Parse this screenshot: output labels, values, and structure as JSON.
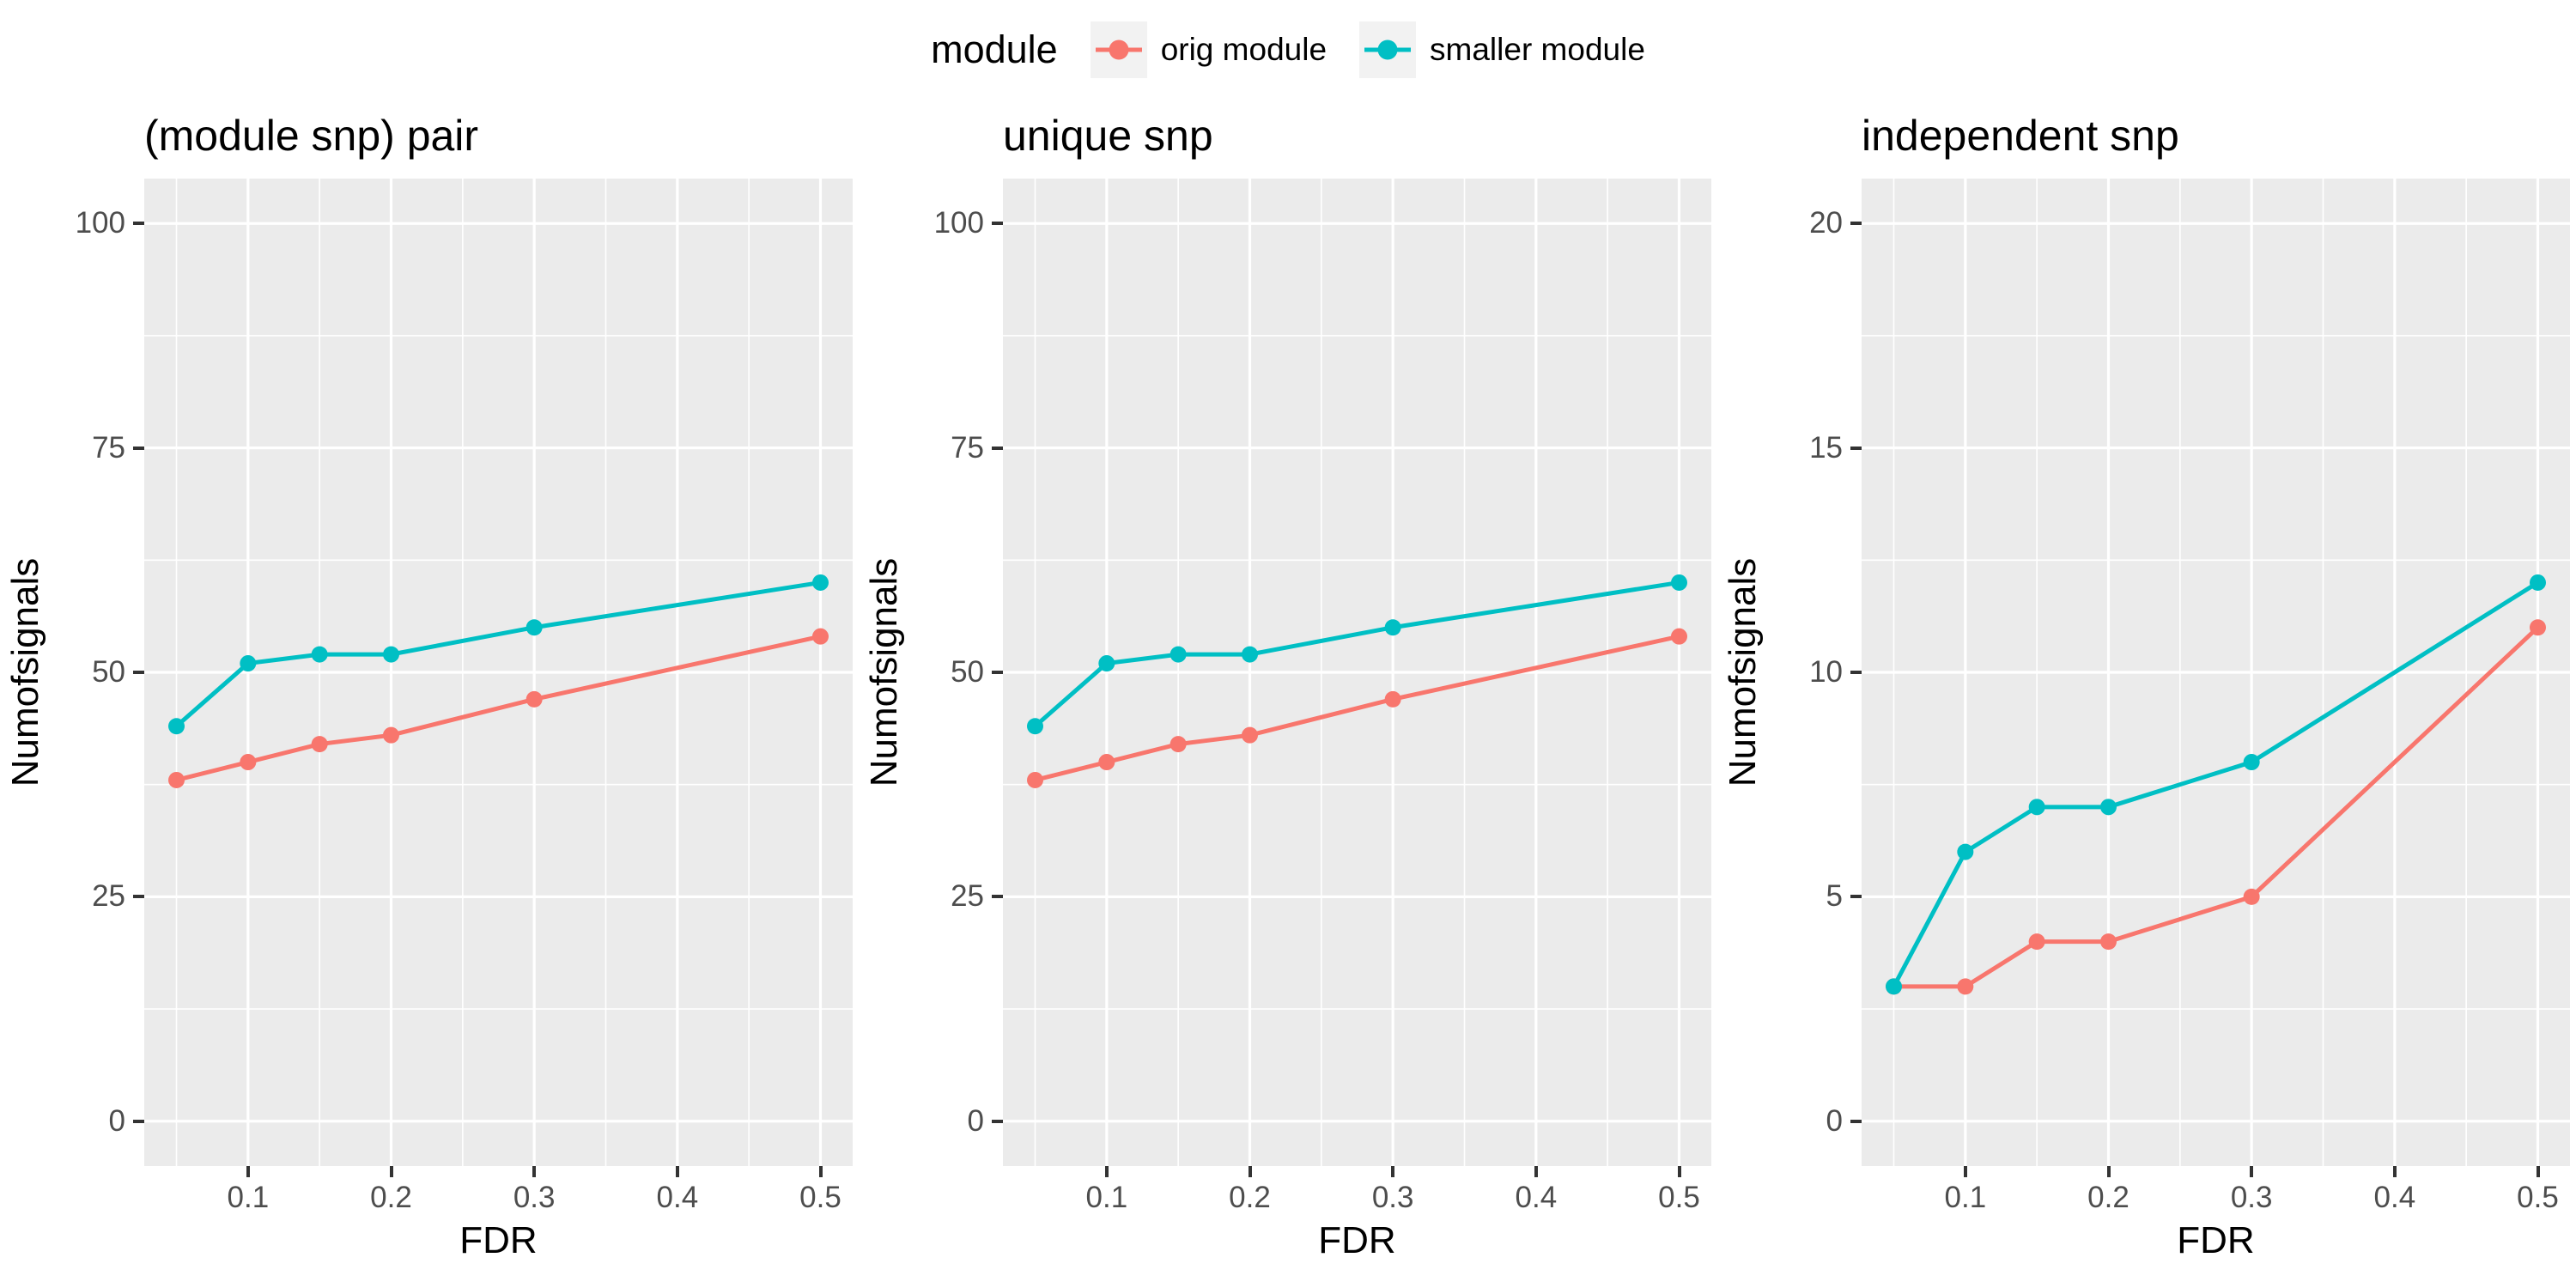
{
  "legend": {
    "title": "module",
    "items": [
      {
        "label": "orig module",
        "color": "#F8766D"
      },
      {
        "label": "smaller module",
        "color": "#00BFC4"
      }
    ]
  },
  "colors": {
    "panel_bg": "#EBEBEB",
    "grid": "#FFFFFF",
    "tick_label": "#4D4D4D",
    "axis_tick": "#333333",
    "legend_key_bg": "#F2F2F2",
    "orig_module": "#F8766D",
    "smaller_module": "#00BFC4"
  },
  "chart_data": [
    {
      "type": "line",
      "title": "(module snp) pair",
      "xlabel": "FDR",
      "ylabel": "Numofsignals",
      "x": [
        0.05,
        0.1,
        0.15,
        0.2,
        0.3,
        0.5
      ],
      "xticks": [
        0.1,
        0.2,
        0.3,
        0.4,
        0.5
      ],
      "ylim": [
        0,
        100
      ],
      "yticks": [
        0,
        25,
        50,
        75,
        100
      ],
      "grid": true,
      "legend_position": "top",
      "series": [
        {
          "name": "orig module",
          "color": "#F8766D",
          "values": [
            38,
            40,
            42,
            43,
            47,
            54
          ]
        },
        {
          "name": "smaller module",
          "color": "#00BFC4",
          "values": [
            44,
            51,
            52,
            52,
            55,
            60
          ]
        }
      ]
    },
    {
      "type": "line",
      "title": "unique snp",
      "xlabel": "FDR",
      "ylabel": "Numofsignals",
      "x": [
        0.05,
        0.1,
        0.15,
        0.2,
        0.3,
        0.5
      ],
      "xticks": [
        0.1,
        0.2,
        0.3,
        0.4,
        0.5
      ],
      "ylim": [
        0,
        100
      ],
      "yticks": [
        0,
        25,
        50,
        75,
        100
      ],
      "grid": true,
      "legend_position": "top",
      "series": [
        {
          "name": "orig module",
          "color": "#F8766D",
          "values": [
            38,
            40,
            42,
            43,
            47,
            54
          ]
        },
        {
          "name": "smaller module",
          "color": "#00BFC4",
          "values": [
            44,
            51,
            52,
            52,
            55,
            60
          ]
        }
      ]
    },
    {
      "type": "line",
      "title": "independent snp",
      "xlabel": "FDR",
      "ylabel": "Numofsignals",
      "x": [
        0.05,
        0.1,
        0.15,
        0.2,
        0.3,
        0.5
      ],
      "xticks": [
        0.1,
        0.2,
        0.3,
        0.4,
        0.5
      ],
      "ylim": [
        0,
        20
      ],
      "yticks": [
        0,
        5,
        10,
        15,
        20
      ],
      "grid": true,
      "legend_position": "top",
      "series": [
        {
          "name": "orig module",
          "color": "#F8766D",
          "values": [
            3,
            3,
            4,
            4,
            5,
            11
          ]
        },
        {
          "name": "smaller module",
          "color": "#00BFC4",
          "values": [
            3,
            6,
            7,
            7,
            8,
            12
          ]
        }
      ]
    }
  ]
}
